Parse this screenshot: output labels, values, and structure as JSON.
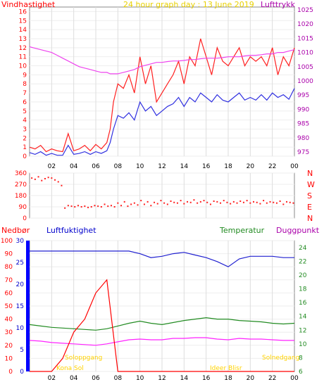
{
  "title": "24 hour graph day : 13 June 2019",
  "colors": {
    "wind_red": "#ff2020",
    "gust_blue": "#3030e0",
    "pressure_magenta": "#ee44ee",
    "title_yellow": "#e8d000",
    "humidity_blue": "#2020d0",
    "temp_green": "#228b22",
    "dew_magenta": "#ff22ff",
    "rain_red": "#ff0000",
    "ylabel_purple": "#aa00aa",
    "solar_yellow": "#ffd200",
    "rain_bar_blue": "#0000ff"
  },
  "x_ticks": [
    "02",
    "04",
    "06",
    "08",
    "10",
    "12",
    "14",
    "16",
    "18",
    "20",
    "22",
    "00"
  ],
  "chart_data": [
    {
      "type": "line",
      "name": "wind",
      "title": "24 hour graph day : 13 June 2019",
      "ylabel_left": "Vindhastighet",
      "ylabel_right": "Lufttrykk",
      "left_ticks": [
        "0",
        "1",
        "2",
        "3",
        "4",
        "5",
        "6",
        "7",
        "8",
        "9",
        "10",
        "11",
        "12",
        "13",
        "14",
        "15",
        "16"
      ],
      "right_ticks": [
        "975",
        "980",
        "985",
        "990",
        "995",
        "1000",
        "1005",
        "1010",
        "1015",
        "1020",
        "1025"
      ],
      "ylim_left": [
        0,
        16.5
      ],
      "ylim_right": [
        973.5,
        1026
      ],
      "x_hours": [
        0,
        0.5,
        1,
        1.5,
        2,
        2.5,
        3,
        3.5,
        4,
        4.5,
        5,
        5.5,
        6,
        6.5,
        7,
        7.3,
        7.6,
        8,
        8.5,
        9,
        9.5,
        10,
        10.5,
        11,
        11.5,
        12,
        12.5,
        13,
        13.5,
        14,
        14.5,
        15,
        15.5,
        16,
        16.5,
        17,
        17.5,
        18,
        18.5,
        19,
        19.5,
        20,
        20.5,
        21,
        21.5,
        22,
        22.5,
        23,
        23.5,
        24
      ],
      "series": [
        {
          "values": [
            1,
            0.8,
            1.2,
            0.5,
            0.8,
            0.6,
            0.5,
            2.5,
            0.6,
            0.8,
            1.2,
            0.6,
            1.3,
            0.8,
            1.5,
            3,
            6,
            8,
            7.5,
            9,
            7,
            11,
            8,
            10,
            6,
            7,
            8,
            9,
            10.5,
            8,
            11,
            10,
            13,
            11,
            9,
            12,
            10.5,
            10,
            11,
            12,
            10,
            11,
            10.5,
            11,
            10,
            12,
            9,
            11,
            10,
            12
          ]
        },
        {
          "values": [
            0.4,
            0.2,
            0.5,
            0.1,
            0.3,
            0.1,
            0.1,
            1.2,
            0.2,
            0.3,
            0.5,
            0.2,
            0.5,
            0.3,
            0.6,
            1.5,
            3,
            4.5,
            4.2,
            4.8,
            4,
            6,
            5,
            5.5,
            4.5,
            5,
            5.5,
            5.8,
            6.5,
            5.5,
            6.5,
            6,
            7,
            6.5,
            6,
            6.8,
            6.2,
            6,
            6.5,
            7,
            6.2,
            6.5,
            6.2,
            6.8,
            6.2,
            7,
            6.5,
            6.8,
            6.3,
            7.5
          ]
        },
        {
          "values": [
            1012,
            1011.5,
            1011,
            1010.5,
            1010,
            1009,
            1008,
            1007,
            1006,
            1005,
            1004.5,
            1004,
            1003.5,
            1003,
            1003,
            1002.5,
            1002.5,
            1002.5,
            1003,
            1003.5,
            1004,
            1005,
            1005.5,
            1006,
            1006.5,
            1006.5,
            1006.8,
            1007,
            1007,
            1007.2,
            1007.5,
            1007.5,
            1007.8,
            1008,
            1008,
            1008,
            1008.2,
            1008.5,
            1008.5,
            1008.5,
            1008.8,
            1009,
            1009,
            1009.2,
            1009.5,
            1009.5,
            1010,
            1010,
            1010.5,
            1011
          ]
        }
      ]
    },
    {
      "type": "scatter",
      "name": "wind direction",
      "left_ticks": [
        "0",
        "90",
        "180",
        "270",
        "360"
      ],
      "right_labels": [
        "N",
        "W",
        "S",
        "E",
        "N"
      ],
      "ylim": [
        0,
        360
      ],
      "x_hours": [
        0.2,
        0.5,
        0.8,
        1.1,
        1.4,
        1.7,
        2,
        2.3,
        2.6,
        2.9,
        3.2,
        3.5,
        3.8,
        4.1,
        4.4,
        4.7,
        5,
        5.3,
        5.6,
        5.9,
        6.2,
        6.5,
        6.8,
        7.1,
        7.4,
        7.7,
        8,
        8.3,
        8.6,
        8.9,
        9.2,
        9.5,
        9.8,
        10.1,
        10.4,
        10.7,
        11,
        11.3,
        11.6,
        11.9,
        12.2,
        12.5,
        12.8,
        13.1,
        13.4,
        13.7,
        14,
        14.3,
        14.6,
        14.9,
        15.2,
        15.5,
        15.8,
        16.1,
        16.4,
        16.7,
        17,
        17.3,
        17.6,
        17.9,
        18.2,
        18.5,
        18.8,
        19.1,
        19.4,
        19.7,
        20,
        20.3,
        20.6,
        20.9,
        21.2,
        21.5,
        21.8,
        22.1,
        22.4,
        22.7,
        23,
        23.3,
        23.6,
        23.9
      ],
      "values": [
        320,
        310,
        330,
        300,
        315,
        325,
        320,
        305,
        290,
        260,
        80,
        100,
        95,
        90,
        100,
        90,
        95,
        85,
        90,
        100,
        95,
        90,
        110,
        95,
        100,
        90,
        120,
        100,
        130,
        95,
        110,
        120,
        105,
        140,
        110,
        130,
        100,
        125,
        115,
        140,
        120,
        110,
        135,
        125,
        120,
        140,
        115,
        130,
        125,
        145,
        120,
        130,
        140,
        125,
        110,
        135,
        130,
        120,
        140,
        125,
        115,
        130,
        120,
        135,
        125,
        140,
        120,
        130,
        125,
        115,
        140,
        120,
        130,
        125,
        120,
        135,
        110,
        130,
        125,
        120
      ]
    },
    {
      "type": "line",
      "name": "humidity temperature rain",
      "ylabels": [
        "Nedbør",
        "Luftfuktighet",
        "Temperatur",
        "Duggpunkt"
      ],
      "rain_ticks": [
        "0",
        "10",
        "20",
        "30",
        "40",
        "50",
        "60",
        "70",
        "80",
        "90",
        "100"
      ],
      "hum_ticks": [
        "0",
        "5",
        "10",
        "15",
        "20",
        "25",
        "30"
      ],
      "temp_ticks": [
        "6",
        "8",
        "10",
        "12",
        "14",
        "16",
        "18",
        "20",
        "22",
        "24"
      ],
      "ylim_temp": [
        6,
        25
      ],
      "ylim_rain": [
        0,
        100
      ],
      "solar_labels": [
        "Soloppgang",
        "Solnedgang",
        "Kona Sol",
        "Ideer Blisr"
      ],
      "x_hours": [
        0,
        1,
        2,
        3,
        4,
        5,
        6,
        7,
        8,
        9,
        10,
        11,
        12,
        13,
        14,
        15,
        16,
        17,
        18,
        19,
        20,
        21,
        22,
        23,
        24
      ],
      "series": [
        {
          "values": [
            92,
            92,
            92,
            92,
            92,
            92,
            92,
            92,
            92,
            92,
            90,
            87,
            88,
            90,
            91,
            89,
            87,
            84,
            80,
            86,
            88,
            88,
            88,
            87,
            87
          ]
        },
        {
          "values": [
            12.8,
            12.6,
            12.4,
            12.3,
            12.2,
            12.1,
            12.0,
            12.2,
            12.6,
            13.0,
            13.3,
            13.0,
            12.8,
            13.1,
            13.4,
            13.6,
            13.8,
            13.6,
            13.6,
            13.4,
            13.3,
            13.2,
            13.0,
            12.9,
            13.0
          ]
        },
        {
          "values": [
            10.5,
            10.4,
            10.2,
            10.1,
            10.0,
            9.9,
            9.8,
            10.0,
            10.3,
            10.6,
            10.7,
            10.6,
            10.6,
            10.8,
            10.8,
            10.9,
            10.9,
            10.7,
            10.6,
            10.8,
            10.7,
            10.7,
            10.6,
            10.5,
            10.5
          ]
        },
        {
          "values": [
            0,
            0,
            0,
            1,
            3,
            4,
            6,
            7,
            0,
            0,
            0,
            0,
            0,
            0,
            0,
            0,
            0,
            0,
            0,
            0,
            0,
            0,
            0,
            0,
            0
          ]
        }
      ]
    }
  ]
}
